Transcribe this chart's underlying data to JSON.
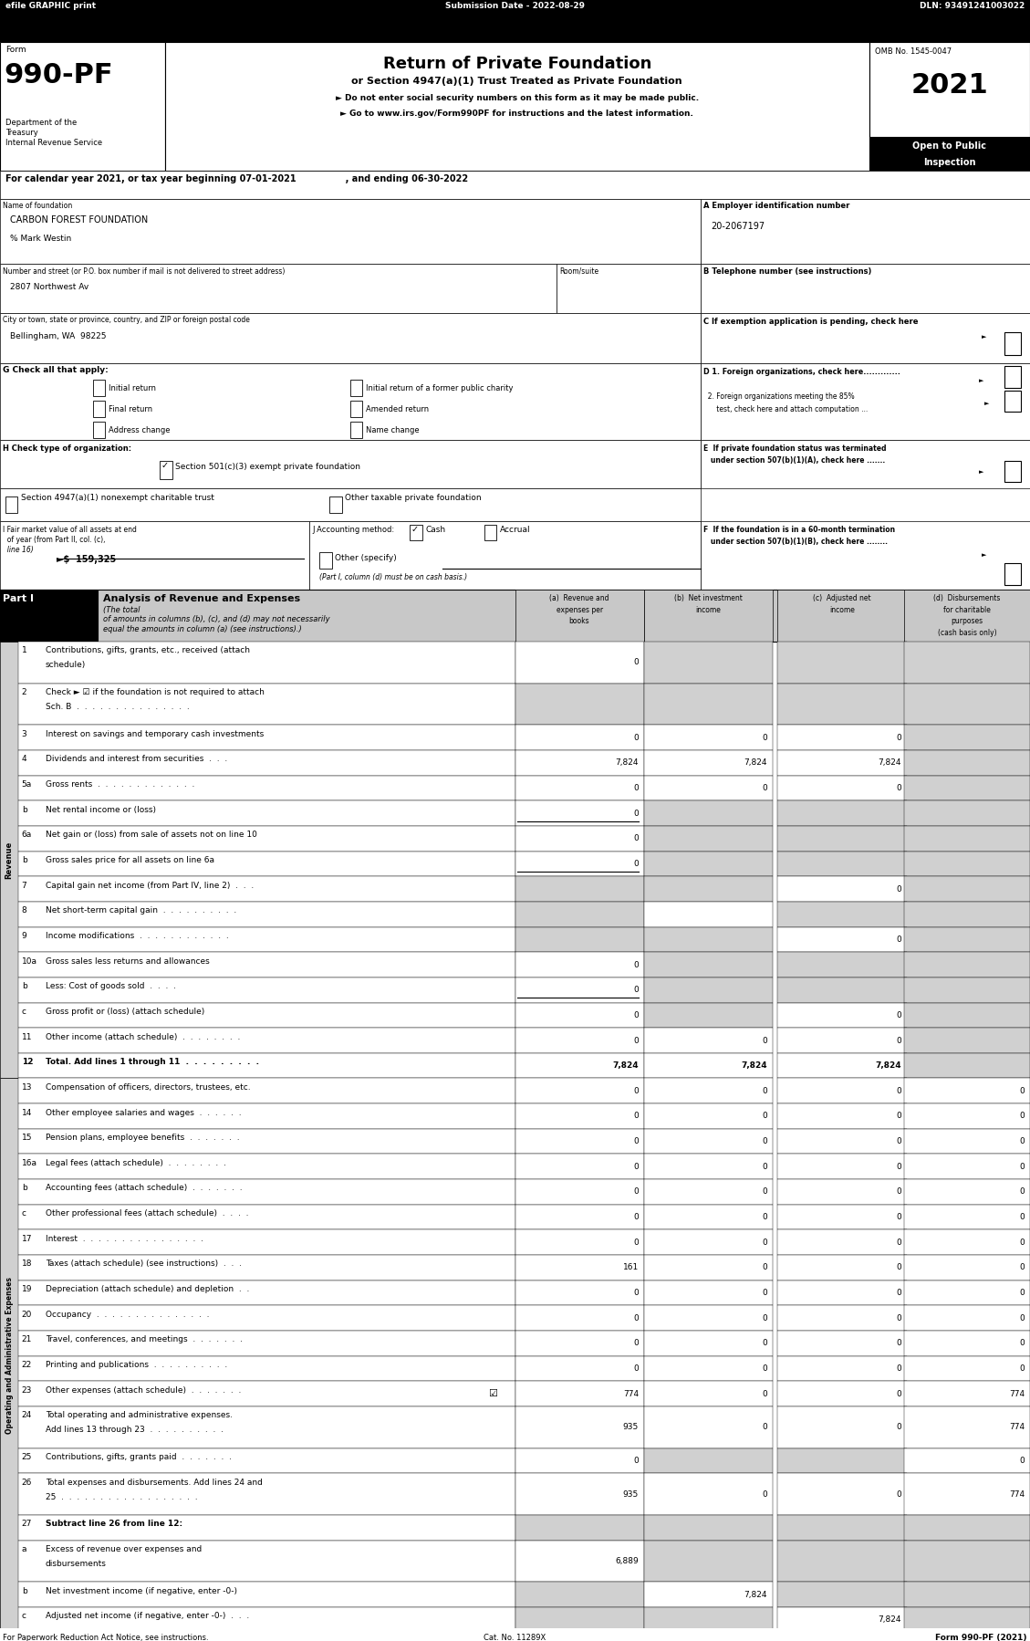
{
  "page_width": 11.29,
  "page_height": 17.98,
  "bg_color": "#ffffff",
  "header_bar": {
    "text_left": "efile GRAPHIC print",
    "text_mid": "Submission Date - 2022-08-29",
    "text_right": "DLN: 93491241003022",
    "bg": "#000000",
    "fg": "#ffffff"
  },
  "form_number": "990-PF",
  "form_label": "Form",
  "dept_lines": [
    "Department of the",
    "Treasury",
    "Internal Revenue Service"
  ],
  "title_main": "Return of Private Foundation",
  "title_sub": "or Section 4947(a)(1) Trust Treated as Private Foundation",
  "bullet1": "► Do not enter social security numbers on this form as it may be made public.",
  "bullet2": "► Go to www.irs.gov/Form990PF for instructions and the latest information.",
  "omb": "OMB No. 1545-0047",
  "year": "2021",
  "open_text": [
    "Open to Public",
    "Inspection"
  ],
  "cal_year_line": "For calendar year 2021, or tax year beginning 07-01-2021                , and ending 06-30-2022",
  "name_label": "Name of foundation",
  "name_value": "CARBON FOREST FOUNDATION",
  "care_of": "% Mark Westin",
  "addr_label": "Number and street (or P.O. box number if mail is not delivered to street address)",
  "addr_room": "Room/suite",
  "addr_value": "2807 Northwest Av",
  "city_label": "City or town, state or province, country, and ZIP or foreign postal code",
  "city_value": "Bellingham, WA  98225",
  "ein_label": "A Employer identification number",
  "ein_value": "20-2067197",
  "phone_label": "B Telephone number (see instructions)",
  "exempt_label": "C If exemption application is pending, check here",
  "g_label": "G Check all that apply:",
  "g_options": [
    [
      "Initial return",
      "Initial return of a former public charity"
    ],
    [
      "Final return",
      "Amended return"
    ],
    [
      "Address change",
      "Name change"
    ]
  ],
  "d1_label": "D 1. Foreign organizations, check here.............",
  "h_label": "H Check type of organization:",
  "h_opt1": "Section 501(c)(3) exempt private foundation",
  "h_opt2": "Section 4947(a)(1) nonexempt charitable trust",
  "h_opt3": "Other taxable private foundation",
  "i_label_1": "I Fair market value of all assets at end",
  "i_label_2": "  of year (from Part II, col. (c),",
  "i_label_3": "  line 16)",
  "i_value": "►$  159,325",
  "j_label": "J Accounting method:",
  "j_cash": "Cash",
  "j_accrual": "Accrual",
  "j_other": "Other (specify)",
  "j_note": "(Part I, column (d) must be on cash basis.)",
  "f_label_1": "F  If the foundation is in a 60-month termination",
  "f_label_2": "   under section 507(b)(1)(B), check here ........",
  "part1_label": "Part I",
  "part1_title": "Analysis of Revenue and Expenses",
  "part1_italic1": "(The total",
  "part1_italic2": "of amounts in columns (b), (c), and (d) may not necessarily",
  "part1_italic3": "equal the amounts in column (a) (see instructions).)",
  "rows": [
    {
      "num": "1",
      "label": "Contributions, gifts, grants, etc., received (attach",
      "label2": "schedule)",
      "a": "0",
      "b": "",
      "c": "",
      "d": "",
      "shade_b": true,
      "shade_c": true,
      "shade_d": true
    },
    {
      "num": "2",
      "label": "Check ► ☑ if the foundation is not required to attach",
      "label2": "Sch. B  .  .  .  .  .  .  .  .  .  .  .  .  .  .  .",
      "a": "",
      "b": "",
      "c": "",
      "d": "",
      "shade_a": true,
      "shade_b": true,
      "shade_c": true,
      "shade_d": true
    },
    {
      "num": "3",
      "label": "Interest on savings and temporary cash investments",
      "label2": "",
      "a": "0",
      "b": "0",
      "c": "0",
      "d": "",
      "shade_d": true
    },
    {
      "num": "4",
      "label": "Dividends and interest from securities  .  .  .",
      "label2": "",
      "a": "7,824",
      "b": "7,824",
      "c": "7,824",
      "d": "",
      "shade_d": true
    },
    {
      "num": "5a",
      "label": "Gross rents  .  .  .  .  .  .  .  .  .  .  .  .  .",
      "label2": "",
      "a": "0",
      "b": "0",
      "c": "0",
      "d": "",
      "shade_d": true
    },
    {
      "num": "b",
      "label": "Net rental income or (loss)",
      "label2": "",
      "a": "0",
      "b": "",
      "c": "",
      "d": "",
      "shade_b": true,
      "shade_c": true,
      "shade_d": true,
      "underline_a": true
    },
    {
      "num": "6a",
      "label": "Net gain or (loss) from sale of assets not on line 10",
      "label2": "",
      "a": "0",
      "b": "",
      "c": "",
      "d": "",
      "shade_b": true,
      "shade_c": true,
      "shade_d": true
    },
    {
      "num": "b",
      "label": "Gross sales price for all assets on line 6a",
      "label2": "",
      "a": "0",
      "b": "",
      "c": "",
      "d": "",
      "shade_b": true,
      "shade_c": true,
      "shade_d": true,
      "underline_a": true
    },
    {
      "num": "7",
      "label": "Capital gain net income (from Part IV, line 2)  .  .  .",
      "label2": "",
      "a": "",
      "b": "",
      "c": "0",
      "d": "",
      "shade_a": true,
      "shade_b": true,
      "shade_d": true
    },
    {
      "num": "8",
      "label": "Net short-term capital gain  .  .  .  .  .  .  .  .  .  .",
      "label2": "",
      "a": "",
      "b": "",
      "c": "",
      "d": "",
      "shade_a": true,
      "shade_c": true,
      "shade_d": true
    },
    {
      "num": "9",
      "label": "Income modifications  .  .  .  .  .  .  .  .  .  .  .  .",
      "label2": "",
      "a": "",
      "b": "",
      "c": "0",
      "d": "",
      "shade_a": true,
      "shade_b": true,
      "shade_d": true
    },
    {
      "num": "10a",
      "label": "Gross sales less returns and allowances",
      "label2": "",
      "a": "0",
      "b": "",
      "c": "",
      "d": "",
      "shade_b": true,
      "shade_c": true,
      "shade_d": true
    },
    {
      "num": "b",
      "label": "Less: Cost of goods sold  .  .  .  .",
      "label2": "",
      "a": "0",
      "b": "",
      "c": "",
      "d": "",
      "shade_b": true,
      "shade_c": true,
      "shade_d": true,
      "underline_a": true
    },
    {
      "num": "c",
      "label": "Gross profit or (loss) (attach schedule)",
      "label2": "",
      "a": "0",
      "b": "",
      "c": "0",
      "d": "",
      "shade_b": true,
      "shade_d": true
    },
    {
      "num": "11",
      "label": "Other income (attach schedule)  .  .  .  .  .  .  .  .",
      "label2": "",
      "a": "0",
      "b": "0",
      "c": "0",
      "d": "",
      "shade_d": true
    },
    {
      "num": "12",
      "label": "Total. Add lines 1 through 11  .  .  .  .  .  .  .  .  .",
      "label2": "",
      "a": "7,824",
      "b": "7,824",
      "c": "7,824",
      "d": "",
      "shade_d": true,
      "bold": true
    },
    {
      "num": "13",
      "label": "Compensation of officers, directors, trustees, etc.",
      "label2": "",
      "a": "0",
      "b": "0",
      "c": "0",
      "d": "0"
    },
    {
      "num": "14",
      "label": "Other employee salaries and wages  .  .  .  .  .  .",
      "label2": "",
      "a": "0",
      "b": "0",
      "c": "0",
      "d": "0"
    },
    {
      "num": "15",
      "label": "Pension plans, employee benefits  .  .  .  .  .  .  .",
      "label2": "",
      "a": "0",
      "b": "0",
      "c": "0",
      "d": "0"
    },
    {
      "num": "16a",
      "label": "Legal fees (attach schedule)  .  .  .  .  .  .  .  .",
      "label2": "",
      "a": "0",
      "b": "0",
      "c": "0",
      "d": "0"
    },
    {
      "num": "b",
      "label": "Accounting fees (attach schedule)  .  .  .  .  .  .  .",
      "label2": "",
      "a": "0",
      "b": "0",
      "c": "0",
      "d": "0"
    },
    {
      "num": "c",
      "label": "Other professional fees (attach schedule)  .  .  .  .",
      "label2": "",
      "a": "0",
      "b": "0",
      "c": "0",
      "d": "0"
    },
    {
      "num": "17",
      "label": "Interest  .  .  .  .  .  .  .  .  .  .  .  .  .  .  .  .",
      "label2": "",
      "a": "0",
      "b": "0",
      "c": "0",
      "d": "0"
    },
    {
      "num": "18",
      "label": "Taxes (attach schedule) (see instructions)  .  .  .",
      "label2": "",
      "a": "161",
      "b": "0",
      "c": "0",
      "d": "0"
    },
    {
      "num": "19",
      "label": "Depreciation (attach schedule) and depletion  .  .",
      "label2": "",
      "a": "0",
      "b": "0",
      "c": "0",
      "d": "0"
    },
    {
      "num": "20",
      "label": "Occupancy  .  .  .  .  .  .  .  .  .  .  .  .  .  .  .",
      "label2": "",
      "a": "0",
      "b": "0",
      "c": "0",
      "d": "0"
    },
    {
      "num": "21",
      "label": "Travel, conferences, and meetings  .  .  .  .  .  .  .",
      "label2": "",
      "a": "0",
      "b": "0",
      "c": "0",
      "d": "0"
    },
    {
      "num": "22",
      "label": "Printing and publications  .  .  .  .  .  .  .  .  .  .",
      "label2": "",
      "a": "0",
      "b": "0",
      "c": "0",
      "d": "0"
    },
    {
      "num": "23",
      "label": "Other expenses (attach schedule)  .  .  .  .  .  .  .",
      "label2": "",
      "a": "774",
      "b": "0",
      "c": "0",
      "d": "774",
      "checkmark": true
    },
    {
      "num": "24",
      "label": "Total operating and administrative expenses.",
      "label2": "Add lines 13 through 23  .  .  .  .  .  .  .  .  .  .",
      "a": "935",
      "b": "0",
      "c": "0",
      "d": "774"
    },
    {
      "num": "25",
      "label": "Contributions, gifts, grants paid  .  .  .  .  .  .  .",
      "label2": "",
      "a": "0",
      "b": "",
      "c": "",
      "d": "0",
      "shade_b": true,
      "shade_c": true
    },
    {
      "num": "26",
      "label": "Total expenses and disbursements. Add lines 24 and",
      "label2": "25  .  .  .  .  .  .  .  .  .  .  .  .  .  .  .  .  .  .",
      "a": "935",
      "b": "0",
      "c": "0",
      "d": "774"
    },
    {
      "num": "27",
      "label": "Subtract line 26 from line 12:",
      "label2": "",
      "a": "",
      "b": "",
      "c": "",
      "d": "",
      "shade_a": true,
      "shade_b": true,
      "shade_c": true,
      "shade_d": true,
      "header_row": true
    },
    {
      "num": "a",
      "label": "Excess of revenue over expenses and",
      "label2": "disbursements",
      "a": "6,889",
      "b": "",
      "c": "",
      "d": "",
      "shade_b": true,
      "shade_c": true,
      "shade_d": true
    },
    {
      "num": "b",
      "label": "Net investment income (if negative, enter -0-)",
      "label2": "",
      "a": "",
      "b": "7,824",
      "c": "",
      "d": "",
      "shade_a": true,
      "shade_c": true,
      "shade_d": true
    },
    {
      "num": "c",
      "label": "Adjusted net income (if negative, enter -0-)  .  .  .",
      "label2": "",
      "a": "",
      "b": "",
      "c": "7,824",
      "d": "",
      "shade_a": true,
      "shade_b": true,
      "shade_d": true
    }
  ],
  "side_label_revenue": "Revenue",
  "side_label_expenses": "Operating and Administrative Expenses",
  "footer_left": "For Paperwork Reduction Act Notice, see instructions.",
  "footer_cat": "Cat. No. 11289X",
  "footer_right": "Form 990-PF (2021)"
}
